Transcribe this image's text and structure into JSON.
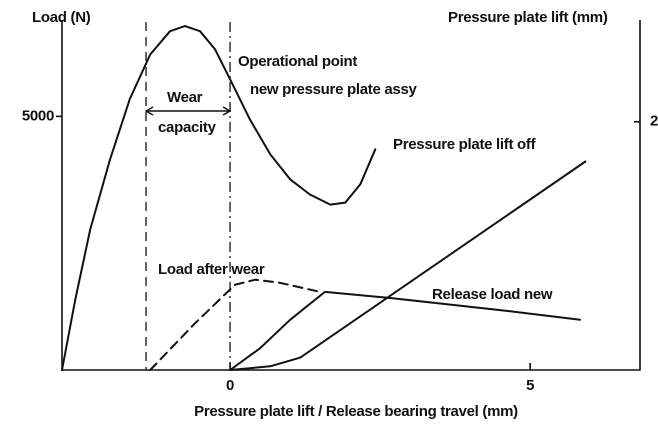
{
  "chart_data": {
    "type": "line",
    "y_label": "Load (N)",
    "y2_label": "Pressure plate lift (mm)",
    "x_label": "Pressure plate lift / Release bearing travel (mm)",
    "xlim": [
      -2.8,
      6.83
    ],
    "xticks": [
      0,
      5
    ],
    "ylim": [
      0,
      6900
    ],
    "yticks": [
      5000
    ],
    "y2lim": [
      0,
      2.82
    ],
    "y2ticks": [
      2
    ],
    "color": "#111111",
    "series": [
      {
        "color": "#111111",
        "style": "solid",
        "x": [
          -2.8,
          -2.58,
          -2.33,
          -2.0,
          -1.67,
          -1.33,
          -1.0,
          -0.75,
          -0.5,
          -0.25,
          0,
          0.33,
          0.67,
          1.0,
          1.33,
          1.67,
          1.92,
          2.17,
          2.42
        ],
        "values": [
          0,
          1380,
          2770,
          4150,
          5340,
          6220,
          6680,
          6780,
          6680,
          6320,
          5730,
          4940,
          4250,
          3760,
          3460,
          3260,
          3300,
          3660,
          4350
        ]
      },
      {
        "name": "Load after wear",
        "color": "#111111",
        "style": "dashed",
        "x": [
          -1.33,
          -0.6,
          0.08,
          0.42,
          0.83,
          1.5
        ],
        "values": [
          0,
          900,
          1680,
          1780,
          1720,
          1540
        ]
      },
      {
        "name": "Release load new",
        "color": "#111111",
        "style": "solid",
        "x": [
          0,
          0.5,
          1.0,
          1.58,
          2.67,
          4.5,
          5.83
        ],
        "values": [
          0,
          430,
          990,
          1540,
          1420,
          1180,
          990
        ]
      },
      {
        "name": "Pressure plate lift off",
        "color": "#111111",
        "style": "solid",
        "axis": "y2",
        "x": [
          0,
          0.67,
          1.17,
          5.92
        ],
        "values": [
          0,
          0.03,
          0.1,
          1.68
        ]
      }
    ],
    "reference_lines": [
      {
        "x": -1.4,
        "style": "dashed"
      },
      {
        "x": 0,
        "style": "dashdot"
      }
    ],
    "annotations": [
      "Operational point",
      "new pressure plate assy",
      "Wear",
      "capacity"
    ]
  }
}
